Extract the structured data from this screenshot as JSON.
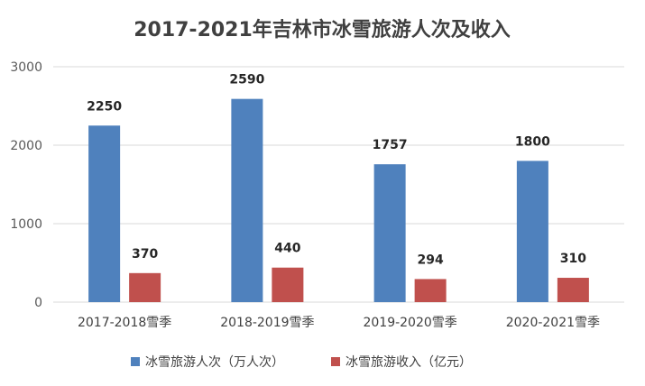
{
  "chart_data": {
    "type": "bar",
    "title": "2017-2021年吉林市冰雪旅游人次及收入",
    "categories": [
      "2017-2018雪季",
      "2018-2019雪季",
      "2019-2020雪季",
      "2020-2021雪季"
    ],
    "series": [
      {
        "name": "冰雪旅游人次（万人次）",
        "values": [
          2250,
          2590,
          1757,
          1800
        ],
        "color": "#4f81bd"
      },
      {
        "name": "冰雪旅游收入（亿元）",
        "values": [
          370,
          440,
          294,
          310
        ],
        "color": "#c0504d"
      }
    ],
    "ylim": [
      0,
      3000
    ],
    "yticks": [
      0,
      1000,
      2000,
      3000
    ],
    "grid": true,
    "legend_position": "bottom"
  }
}
